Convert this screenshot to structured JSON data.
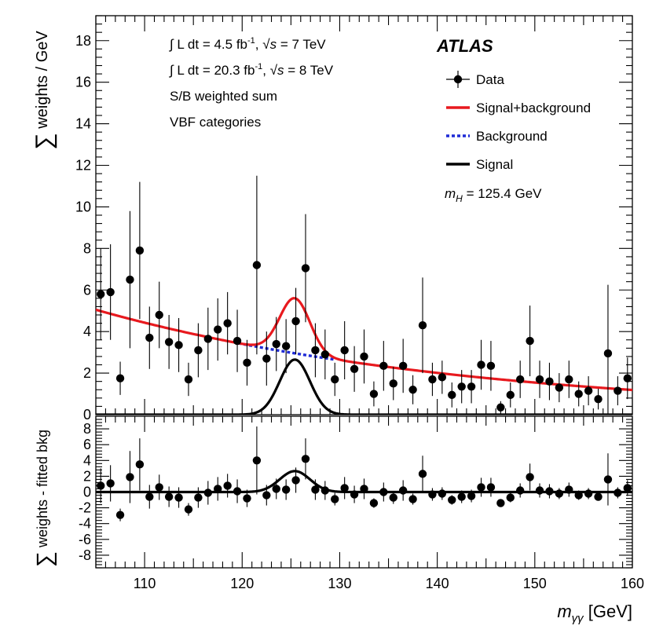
{
  "chart_data": [
    {
      "type": "scatter",
      "panel": "main",
      "xlim": [
        105,
        160
      ],
      "ylim": [
        0,
        19.2
      ],
      "yticks": [
        0,
        2,
        4,
        6,
        8,
        10,
        12,
        14,
        16,
        18
      ],
      "ylabel": {
        "sum": "∑",
        "text": " weights / GeV"
      },
      "annotations": [
        {
          "pre": "∫ L dt = 4.5 fb",
          "sup": "-1",
          "mid": ", ",
          "sqrt": "√",
          "s": "s",
          "post": " = 7 TeV"
        },
        {
          "pre": "∫ L dt = 20.3 fb",
          "sup": "-1",
          "mid": ", ",
          "sqrt": "√",
          "s": "s",
          "post": " = 8 TeV"
        },
        {
          "text": "S/B weighted sum"
        },
        {
          "text": "VBF categories"
        }
      ],
      "experiment": "ATLAS",
      "mass_label": {
        "m": "m",
        "sub": "H",
        "value": " = 125.4 GeV"
      },
      "legend": [
        {
          "label": "Data",
          "style": "marker",
          "color": "#000000"
        },
        {
          "label": "Signal+background",
          "style": "solid",
          "color": "#e8191e"
        },
        {
          "label": "Background",
          "style": "dotted",
          "color": "#1f2bd6"
        },
        {
          "label": "Signal",
          "style": "solid",
          "color": "#000000"
        }
      ],
      "curves": {
        "signal_peak": 125.4,
        "signal_height": 2.65,
        "signal_sigma": 1.55,
        "background": {
          "A": 5.05,
          "k": 0.0263,
          "x0": 105
        }
      },
      "series": [
        {
          "name": "Data",
          "points": [
            {
              "x": 105.5,
              "y": 5.8,
              "err": 2.2
            },
            {
              "x": 106.5,
              "y": 5.9,
              "err": 2.3
            },
            {
              "x": 107.5,
              "y": 1.75,
              "err": 0.8
            },
            {
              "x": 108.5,
              "y": 6.5,
              "err": 3.3
            },
            {
              "x": 109.5,
              "y": 7.9,
              "err": 3.3
            },
            {
              "x": 110.5,
              "y": 3.7,
              "err": 1.5
            },
            {
              "x": 111.5,
              "y": 4.8,
              "err": 1.6
            },
            {
              "x": 112.5,
              "y": 3.5,
              "err": 1.3
            },
            {
              "x": 113.5,
              "y": 3.35,
              "err": 1.3
            },
            {
              "x": 114.5,
              "y": 1.7,
              "err": 0.8
            },
            {
              "x": 115.5,
              "y": 3.1,
              "err": 1.3
            },
            {
              "x": 116.5,
              "y": 3.65,
              "err": 1.5
            },
            {
              "x": 117.5,
              "y": 4.1,
              "err": 1.5
            },
            {
              "x": 118.5,
              "y": 4.4,
              "err": 1.5
            },
            {
              "x": 119.5,
              "y": 3.55,
              "err": 1.5
            },
            {
              "x": 120.5,
              "y": 2.5,
              "err": 1.1
            },
            {
              "x": 121.5,
              "y": 7.2,
              "err": 4.3
            },
            {
              "x": 122.5,
              "y": 2.7,
              "err": 1.3
            },
            {
              "x": 123.5,
              "y": 3.4,
              "err": 1.3
            },
            {
              "x": 124.5,
              "y": 3.3,
              "err": 1.3
            },
            {
              "x": 125.5,
              "y": 4.5,
              "err": 1.6
            },
            {
              "x": 126.5,
              "y": 7.05,
              "err": 2.6
            },
            {
              "x": 127.5,
              "y": 3.1,
              "err": 1.3
            },
            {
              "x": 128.5,
              "y": 2.9,
              "err": 1.2
            },
            {
              "x": 129.5,
              "y": 1.7,
              "err": 0.8
            },
            {
              "x": 130.5,
              "y": 3.1,
              "err": 1.4
            },
            {
              "x": 131.5,
              "y": 2.2,
              "err": 1.1
            },
            {
              "x": 132.5,
              "y": 2.8,
              "err": 1.3
            },
            {
              "x": 133.5,
              "y": 1.0,
              "err": 0.6
            },
            {
              "x": 134.5,
              "y": 2.35,
              "err": 1.2
            },
            {
              "x": 135.5,
              "y": 1.5,
              "err": 0.8
            },
            {
              "x": 136.5,
              "y": 2.35,
              "err": 1.3
            },
            {
              "x": 137.5,
              "y": 1.2,
              "err": 0.7
            },
            {
              "x": 138.5,
              "y": 4.3,
              "err": 2.3
            },
            {
              "x": 139.5,
              "y": 1.7,
              "err": 0.8
            },
            {
              "x": 140.5,
              "y": 1.8,
              "err": 0.8
            },
            {
              "x": 141.5,
              "y": 0.95,
              "err": 0.6
            },
            {
              "x": 142.5,
              "y": 1.35,
              "err": 0.8
            },
            {
              "x": 143.5,
              "y": 1.35,
              "err": 0.8
            },
            {
              "x": 144.5,
              "y": 2.4,
              "err": 1.2
            },
            {
              "x": 145.5,
              "y": 2.35,
              "err": 1.2
            },
            {
              "x": 146.5,
              "y": 0.35,
              "err": 0.3
            },
            {
              "x": 147.5,
              "y": 0.95,
              "err": 0.6
            },
            {
              "x": 148.5,
              "y": 1.7,
              "err": 0.9
            },
            {
              "x": 149.5,
              "y": 3.55,
              "err": 1.7
            },
            {
              "x": 150.5,
              "y": 1.7,
              "err": 0.9
            },
            {
              "x": 151.5,
              "y": 1.6,
              "err": 0.9
            },
            {
              "x": 152.5,
              "y": 1.3,
              "err": 0.7
            },
            {
              "x": 153.5,
              "y": 1.7,
              "err": 0.9
            },
            {
              "x": 154.5,
              "y": 1.0,
              "err": 0.6
            },
            {
              "x": 155.5,
              "y": 1.15,
              "err": 0.7
            },
            {
              "x": 156.5,
              "y": 0.75,
              "err": 0.5
            },
            {
              "x": 157.5,
              "y": 2.95,
              "err": 3.3
            },
            {
              "x": 158.5,
              "y": 1.15,
              "err": 0.7
            },
            {
              "x": 159.5,
              "y": 1.75,
              "err": 1.0
            }
          ]
        }
      ]
    },
    {
      "type": "scatter",
      "panel": "residual",
      "xlim": [
        105,
        160
      ],
      "ylim": [
        -9.6,
        9.6
      ],
      "yticks": [
        -8,
        -6,
        -4,
        -2,
        0,
        2,
        4,
        6,
        8
      ],
      "xticks": [
        110,
        120,
        130,
        140,
        150,
        160
      ],
      "ylabel": {
        "sum": "∑",
        "text": " weights - fitted bkg"
      },
      "xlabel": {
        "m": "m",
        "sub": "γγ",
        "unit": " [GeV]"
      },
      "series": [
        {
          "name": "Data",
          "points": [
            {
              "x": 105.5,
              "y": 0.8,
              "err": 2.2
            },
            {
              "x": 106.5,
              "y": 1.1,
              "err": 2.3
            },
            {
              "x": 107.5,
              "y": -2.9,
              "err": 0.8
            },
            {
              "x": 108.5,
              "y": 1.9,
              "err": 3.3
            },
            {
              "x": 109.5,
              "y": 3.5,
              "err": 3.3
            },
            {
              "x": 110.5,
              "y": -0.6,
              "err": 1.5
            },
            {
              "x": 111.5,
              "y": 0.6,
              "err": 1.6
            },
            {
              "x": 112.5,
              "y": -0.6,
              "err": 1.3
            },
            {
              "x": 113.5,
              "y": -0.7,
              "err": 1.3
            },
            {
              "x": 114.5,
              "y": -2.2,
              "err": 0.8
            },
            {
              "x": 115.5,
              "y": -0.7,
              "err": 1.3
            },
            {
              "x": 116.5,
              "y": -0.1,
              "err": 1.5
            },
            {
              "x": 117.5,
              "y": 0.4,
              "err": 1.5
            },
            {
              "x": 118.5,
              "y": 0.8,
              "err": 1.5
            },
            {
              "x": 119.5,
              "y": 0.1,
              "err": 1.5
            },
            {
              "x": 120.5,
              "y": -0.8,
              "err": 1.1
            },
            {
              "x": 121.5,
              "y": 4.0,
              "err": 4.3
            },
            {
              "x": 122.5,
              "y": -0.4,
              "err": 1.3
            },
            {
              "x": 123.5,
              "y": 0.4,
              "err": 1.3
            },
            {
              "x": 124.5,
              "y": 0.3,
              "err": 1.3
            },
            {
              "x": 125.5,
              "y": 1.5,
              "err": 1.6
            },
            {
              "x": 126.5,
              "y": 4.2,
              "err": 2.6
            },
            {
              "x": 127.5,
              "y": 0.3,
              "err": 1.3
            },
            {
              "x": 128.5,
              "y": 0.2,
              "err": 1.2
            },
            {
              "x": 129.5,
              "y": -0.9,
              "err": 0.8
            },
            {
              "x": 130.5,
              "y": 0.5,
              "err": 1.4
            },
            {
              "x": 131.5,
              "y": -0.3,
              "err": 1.1
            },
            {
              "x": 132.5,
              "y": 0.4,
              "err": 1.3
            },
            {
              "x": 133.5,
              "y": -1.4,
              "err": 0.6
            },
            {
              "x": 134.5,
              "y": 0.0,
              "err": 1.2
            },
            {
              "x": 135.5,
              "y": -0.7,
              "err": 0.8
            },
            {
              "x": 136.5,
              "y": 0.2,
              "err": 1.3
            },
            {
              "x": 137.5,
              "y": -0.9,
              "err": 0.7
            },
            {
              "x": 138.5,
              "y": 2.3,
              "err": 2.3
            },
            {
              "x": 139.5,
              "y": -0.3,
              "err": 0.8
            },
            {
              "x": 140.5,
              "y": -0.2,
              "err": 0.8
            },
            {
              "x": 141.5,
              "y": -1.0,
              "err": 0.6
            },
            {
              "x": 142.5,
              "y": -0.6,
              "err": 0.8
            },
            {
              "x": 143.5,
              "y": -0.5,
              "err": 0.8
            },
            {
              "x": 144.5,
              "y": 0.6,
              "err": 1.2
            },
            {
              "x": 145.5,
              "y": 0.6,
              "err": 1.2
            },
            {
              "x": 146.5,
              "y": -1.4,
              "err": 0.3
            },
            {
              "x": 147.5,
              "y": -0.7,
              "err": 0.6
            },
            {
              "x": 148.5,
              "y": 0.2,
              "err": 0.9
            },
            {
              "x": 149.5,
              "y": 1.9,
              "err": 1.7
            },
            {
              "x": 150.5,
              "y": 0.2,
              "err": 0.9
            },
            {
              "x": 151.5,
              "y": 0.1,
              "err": 0.9
            },
            {
              "x": 152.5,
              "y": -0.2,
              "err": 0.7
            },
            {
              "x": 153.5,
              "y": 0.3,
              "err": 0.9
            },
            {
              "x": 154.5,
              "y": -0.4,
              "err": 0.6
            },
            {
              "x": 155.5,
              "y": -0.2,
              "err": 0.7
            },
            {
              "x": 156.5,
              "y": -0.6,
              "err": 0.5
            },
            {
              "x": 157.5,
              "y": 1.6,
              "err": 3.3
            },
            {
              "x": 158.5,
              "y": -0.1,
              "err": 0.7
            },
            {
              "x": 159.5,
              "y": 0.5,
              "err": 1.0
            }
          ]
        }
      ]
    }
  ]
}
